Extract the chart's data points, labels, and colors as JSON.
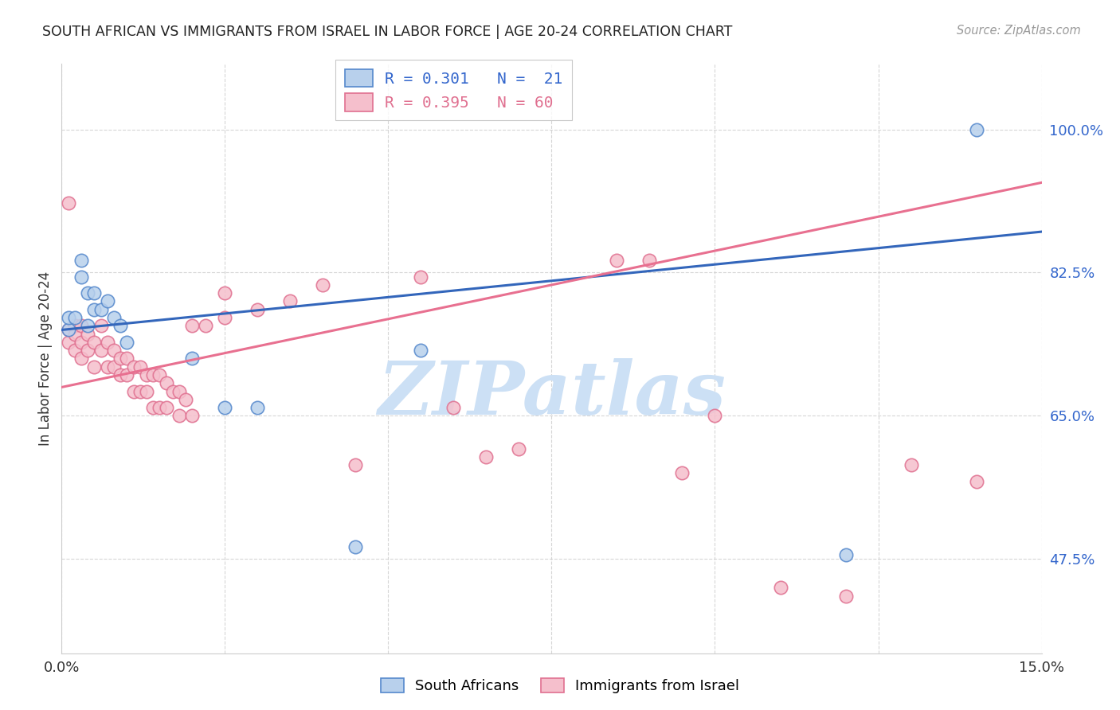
{
  "title": "SOUTH AFRICAN VS IMMIGRANTS FROM ISRAEL IN LABOR FORCE | AGE 20-24 CORRELATION CHART",
  "source": "Source: ZipAtlas.com",
  "ylabel_label": "In Labor Force | Age 20-24",
  "yticks": [
    0.475,
    0.65,
    0.825,
    1.0
  ],
  "ytick_labels": [
    "47.5%",
    "65.0%",
    "82.5%",
    "100.0%"
  ],
  "xmin": 0.0,
  "xmax": 0.15,
  "ymin": 0.36,
  "ymax": 1.08,
  "blue_scatter_face": "#b8d0ec",
  "blue_scatter_edge": "#5588cc",
  "blue_line_color": "#3366bb",
  "pink_scatter_face": "#f5bfcc",
  "pink_scatter_edge": "#e07090",
  "pink_line_color": "#e87090",
  "label_blue": "South Africans",
  "label_pink": "Immigrants from Israel",
  "legend_blue": "R = 0.301   N =  21",
  "legend_pink": "R = 0.395   N = 60",
  "watermark": "ZIPatlas",
  "watermark_color": "#cce0f5",
  "background_color": "#ffffff",
  "grid_color": "#cccccc",
  "blue_trend_x0": 0.0,
  "blue_trend_y0": 0.755,
  "blue_trend_x1": 0.15,
  "blue_trend_y1": 0.875,
  "pink_trend_x0": 0.0,
  "pink_trend_y0": 0.685,
  "pink_trend_x1": 0.15,
  "pink_trend_y1": 0.935,
  "blue_x": [
    0.001,
    0.001,
    0.002,
    0.003,
    0.003,
    0.004,
    0.004,
    0.005,
    0.005,
    0.006,
    0.007,
    0.008,
    0.009,
    0.01,
    0.02,
    0.025,
    0.03,
    0.045,
    0.055,
    0.12,
    0.14
  ],
  "blue_y": [
    0.755,
    0.77,
    0.77,
    0.84,
    0.82,
    0.8,
    0.76,
    0.8,
    0.78,
    0.78,
    0.79,
    0.77,
    0.76,
    0.74,
    0.72,
    0.66,
    0.66,
    0.49,
    0.73,
    0.48,
    1.0
  ],
  "pink_x": [
    0.001,
    0.001,
    0.001,
    0.002,
    0.002,
    0.002,
    0.003,
    0.003,
    0.003,
    0.004,
    0.004,
    0.005,
    0.005,
    0.006,
    0.006,
    0.007,
    0.007,
    0.008,
    0.008,
    0.009,
    0.009,
    0.01,
    0.01,
    0.011,
    0.011,
    0.012,
    0.012,
    0.013,
    0.013,
    0.014,
    0.014,
    0.015,
    0.015,
    0.016,
    0.016,
    0.017,
    0.018,
    0.018,
    0.019,
    0.02,
    0.02,
    0.022,
    0.025,
    0.025,
    0.03,
    0.035,
    0.04,
    0.045,
    0.055,
    0.06,
    0.065,
    0.07,
    0.085,
    0.09,
    0.095,
    0.1,
    0.11,
    0.12,
    0.13,
    0.14
  ],
  "pink_y": [
    0.755,
    0.74,
    0.91,
    0.76,
    0.75,
    0.73,
    0.76,
    0.74,
    0.72,
    0.75,
    0.73,
    0.74,
    0.71,
    0.76,
    0.73,
    0.74,
    0.71,
    0.73,
    0.71,
    0.72,
    0.7,
    0.72,
    0.7,
    0.71,
    0.68,
    0.71,
    0.68,
    0.7,
    0.68,
    0.7,
    0.66,
    0.7,
    0.66,
    0.69,
    0.66,
    0.68,
    0.68,
    0.65,
    0.67,
    0.65,
    0.76,
    0.76,
    0.8,
    0.77,
    0.78,
    0.79,
    0.81,
    0.59,
    0.82,
    0.66,
    0.6,
    0.61,
    0.84,
    0.84,
    0.58,
    0.65,
    0.44,
    0.43,
    0.59,
    0.57
  ]
}
